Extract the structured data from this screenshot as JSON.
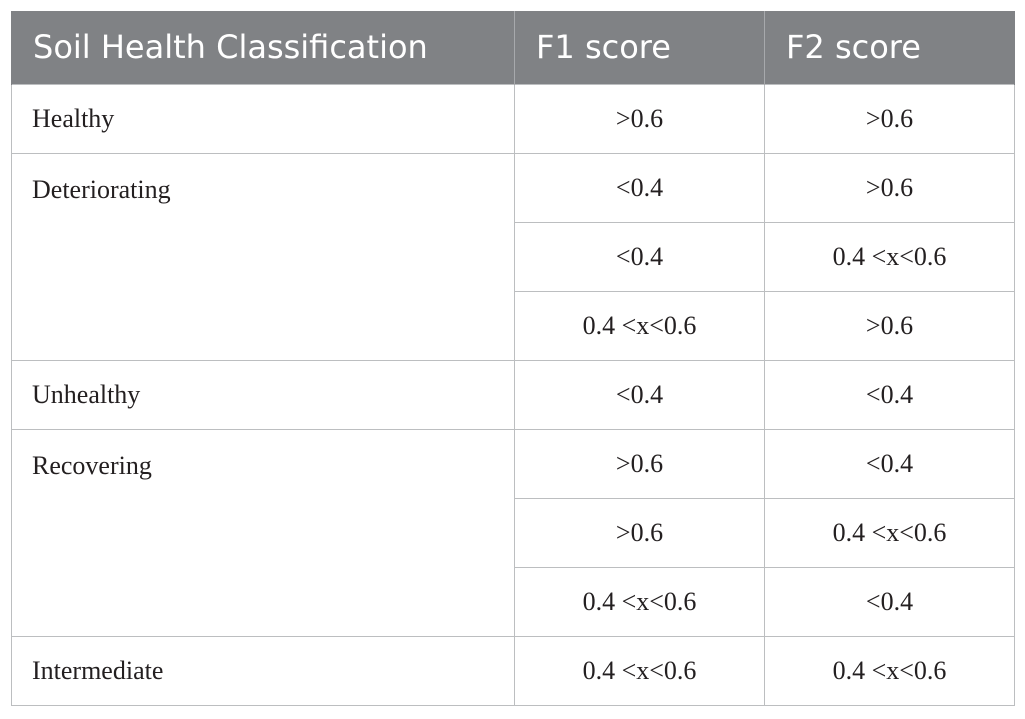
{
  "headers": [
    "Soil Health Classification",
    "F1 score",
    "F2 score"
  ],
  "groups": [
    {
      "label": "Healthy",
      "rows": [
        [
          ">0.6",
          ">0.6"
        ]
      ]
    },
    {
      "label": "Deteriorating",
      "rows": [
        [
          "<0.4",
          ">0.6"
        ],
        [
          "<0.4",
          "0.4 <x<0.6"
        ],
        [
          "0.4 <x<0.6",
          ">0.6"
        ]
      ]
    },
    {
      "label": "Unhealthy",
      "rows": [
        [
          "<0.4",
          "<0.4"
        ]
      ]
    },
    {
      "label": "Recovering",
      "rows": [
        [
          ">0.6",
          "<0.4"
        ],
        [
          ">0.6",
          "0.4 <x<0.6"
        ],
        [
          "0.4 <x<0.6",
          "<0.4"
        ]
      ]
    },
    {
      "label": "Intermediate",
      "rows": [
        [
          "0.4 <x<0.6",
          "0.4 <x<0.6"
        ]
      ]
    }
  ],
  "colors": {
    "header_bg": "#808285",
    "header_text": "#ffffff",
    "grid": "#bcbec0",
    "body_text": "#231f20"
  }
}
